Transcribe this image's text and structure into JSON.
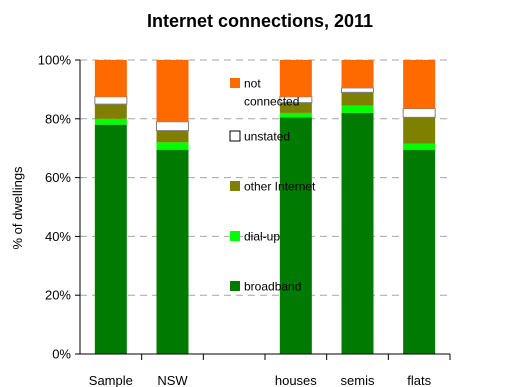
{
  "chart_data": {
    "type": "bar",
    "stacked": true,
    "title": "Internet connections, 2011",
    "xlabel": "",
    "ylabel": "% of dwellings",
    "ylim": [
      0,
      100
    ],
    "yticks": [
      "0%",
      "20%",
      "40%",
      "60%",
      "80%",
      "100%"
    ],
    "categories": [
      "Sample",
      "NSW",
      "",
      "houses",
      "semis",
      "flats"
    ],
    "series": [
      {
        "name": "broadband",
        "color": "#007a00",
        "values": [
          78,
          69.5,
          null,
          80.5,
          82,
          69.5
        ]
      },
      {
        "name": "dial-up",
        "color": "#00ff00",
        "values": [
          2,
          2.5,
          null,
          1.5,
          2.5,
          2
        ]
      },
      {
        "name": "other Internet",
        "color": "#808000",
        "values": [
          5,
          4,
          null,
          3.5,
          4.5,
          9
        ]
      },
      {
        "name": "unstated",
        "color": "#ffffff",
        "values": [
          2.5,
          3,
          null,
          2,
          1.5,
          3
        ]
      },
      {
        "name": "not connected",
        "color": "#ff6a00",
        "values": [
          12.5,
          21,
          null,
          12.5,
          9.5,
          16.5
        ]
      }
    ],
    "legend_order": [
      "not connected",
      "unstated",
      "other Internet",
      "dial-up",
      "broadband"
    ],
    "legend_labels": {
      "not connected": [
        "not",
        "connected"
      ],
      "unstated": [
        "unstated"
      ],
      "other Internet": [
        "other Internet"
      ],
      "dial-up": [
        "dial-up"
      ],
      "broadband": [
        "broadband"
      ]
    },
    "legend_position": "inside-center",
    "grid": true
  }
}
